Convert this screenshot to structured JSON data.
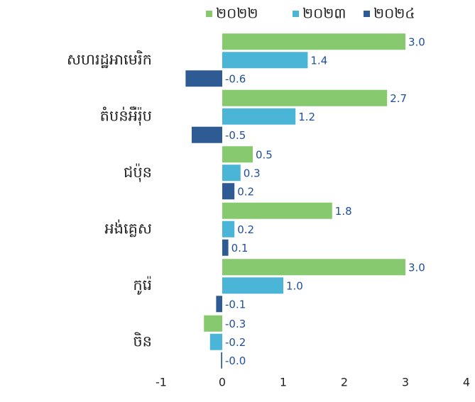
{
  "chart_data": {
    "type": "bar",
    "orientation": "horizontal",
    "categories": [
      "សហរដ្ឋអាមេរិក",
      "តំបន់អឺរ៉ុប",
      "ជប៉ុន",
      "អង់គ្លេស",
      "កូរ៉េ",
      "ចិន"
    ],
    "series": [
      {
        "name": "២០២២",
        "color": "#86c96e",
        "values": [
          3.0,
          2.7,
          0.5,
          1.8,
          3.0,
          -0.3
        ],
        "value_labels": [
          "3.0",
          "2.7",
          "0.5",
          "1.8",
          "3.0",
          "-0.3"
        ]
      },
      {
        "name": "២០២៣",
        "color": "#4ab5d6",
        "values": [
          1.4,
          1.2,
          0.3,
          0.2,
          1.0,
          -0.2
        ],
        "value_labels": [
          "1.4",
          "1.2",
          "0.3",
          "0.2",
          "1.0",
          "-0.2"
        ]
      },
      {
        "name": "២០២៤",
        "color": "#2e5b94",
        "values": [
          -0.6,
          -0.5,
          0.2,
          0.1,
          -0.1,
          -0.02
        ],
        "value_labels": [
          "-0.6",
          "-0.5",
          "0.2",
          "0.1",
          "-0.1",
          "-0.0"
        ]
      }
    ],
    "xlim": [
      -1,
      4
    ],
    "xticks": [
      -1,
      0,
      1,
      2,
      3,
      4
    ],
    "legend": "top"
  }
}
